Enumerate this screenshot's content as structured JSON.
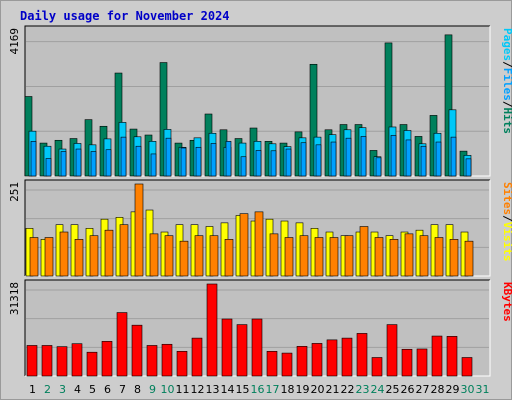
{
  "title": "Daily usage for November 2024",
  "colors": {
    "hits": "#00805c",
    "files": "#00a0ff",
    "pages": "#00c8f8",
    "visits": "#ffff00",
    "sites": "#ff8000",
    "kbytes": "#ff0000",
    "weekday_label": "#000000",
    "weekend_label": "#00805c",
    "panel_bg": "#c0c0c0"
  },
  "chart_data": [
    {
      "type": "bar",
      "panel": "hits-files-pages",
      "max_label": "4169",
      "ylim": [
        0,
        4169
      ],
      "legend": [
        {
          "name": "Hits",
          "color": "#00805c"
        },
        {
          "name": "Files",
          "color": "#00a0ff"
        },
        {
          "name": "Pages",
          "color": "#00c8f8"
        }
      ],
      "categories": [
        "1",
        "2",
        "3",
        "4",
        "5",
        "6",
        "7",
        "8",
        "9",
        "10",
        "11",
        "12",
        "13",
        "14",
        "15",
        "16",
        "17",
        "18",
        "19",
        "20",
        "21",
        "22",
        "23",
        "24",
        "25",
        "26",
        "27",
        "28",
        "29",
        "30",
        "31"
      ],
      "series": [
        {
          "name": "Hits",
          "values": [
            2270,
            940,
            1020,
            1070,
            1610,
            1420,
            2940,
            1340,
            1170,
            3240,
            940,
            1020,
            1770,
            1320,
            1070,
            1370,
            990,
            940,
            1260,
            3190,
            1320,
            1470,
            1470,
            730,
            3800,
            1470,
            1130,
            1730,
            4030,
            710,
            0
          ]
        },
        {
          "name": "Files",
          "values": [
            990,
            500,
            700,
            770,
            700,
            750,
            1110,
            850,
            630,
            1080,
            800,
            820,
            930,
            990,
            550,
            730,
            720,
            770,
            950,
            890,
            970,
            1080,
            1130,
            520,
            1160,
            1030,
            850,
            970,
            1110,
            490,
            0
          ]
        },
        {
          "name": "Pages",
          "values": [
            1280,
            850,
            770,
            930,
            890,
            1060,
            1530,
            1120,
            990,
            1330,
            820,
            1090,
            1220,
            820,
            940,
            990,
            920,
            840,
            1090,
            1110,
            1180,
            1320,
            1380,
            550,
            1400,
            1300,
            920,
            1220,
            1890,
            590,
            0
          ]
        }
      ]
    },
    {
      "type": "bar",
      "panel": "visits-sites",
      "max_label": "251",
      "ylim": [
        0,
        251
      ],
      "legend": [
        {
          "name": "Visits",
          "color": "#ffff00"
        },
        {
          "name": "Sites",
          "color": "#ff8000"
        }
      ],
      "categories": [
        "1",
        "2",
        "3",
        "4",
        "5",
        "6",
        "7",
        "8",
        "9",
        "10",
        "11",
        "12",
        "13",
        "14",
        "15",
        "16",
        "17",
        "18",
        "19",
        "20",
        "21",
        "22",
        "23",
        "24",
        "25",
        "26",
        "27",
        "28",
        "29",
        "30",
        "31"
      ],
      "series": [
        {
          "name": "Visits",
          "values": [
            130,
            100,
            140,
            140,
            130,
            155,
            160,
            175,
            180,
            120,
            140,
            140,
            135,
            145,
            165,
            150,
            155,
            150,
            145,
            130,
            120,
            110,
            120,
            120,
            110,
            120,
            125,
            140,
            140,
            120,
            0
          ]
        },
        {
          "name": "Sites",
          "values": [
            105,
            105,
            120,
            100,
            110,
            125,
            140,
            251,
            115,
            110,
            95,
            110,
            110,
            100,
            170,
            175,
            115,
            105,
            110,
            105,
            105,
            110,
            135,
            105,
            100,
            115,
            110,
            105,
            100,
            95,
            0
          ]
        }
      ]
    },
    {
      "type": "bar",
      "panel": "kbytes",
      "max_label": "31318",
      "ylim": [
        0,
        31318
      ],
      "legend": [
        {
          "name": "KBytes",
          "color": "#ff0000"
        }
      ],
      "categories": [
        "1",
        "2",
        "3",
        "4",
        "5",
        "6",
        "7",
        "8",
        "9",
        "10",
        "11",
        "12",
        "13",
        "14",
        "15",
        "16",
        "17",
        "18",
        "19",
        "20",
        "21",
        "22",
        "23",
        "24",
        "25",
        "26",
        "27",
        "28",
        "29",
        "30",
        "31"
      ],
      "series": [
        {
          "name": "KBytes",
          "values": [
            10400,
            10400,
            10000,
            11000,
            8100,
            11800,
            21600,
            17300,
            10400,
            10800,
            8400,
            12900,
            31318,
            19400,
            17500,
            19400,
            8400,
            7800,
            10100,
            11100,
            12300,
            12900,
            14500,
            6300,
            17500,
            9100,
            9200,
            13600,
            13500,
            6300,
            0
          ]
        }
      ]
    }
  ],
  "x_axis": {
    "days": [
      "1",
      "2",
      "3",
      "4",
      "5",
      "6",
      "7",
      "8",
      "9",
      "10",
      "11",
      "12",
      "13",
      "14",
      "15",
      "16",
      "17",
      "18",
      "19",
      "20",
      "21",
      "22",
      "23",
      "24",
      "25",
      "26",
      "27",
      "28",
      "29",
      "30",
      "31"
    ],
    "weekend": [
      2,
      3,
      9,
      10,
      16,
      17,
      23,
      24,
      30,
      31
    ]
  }
}
